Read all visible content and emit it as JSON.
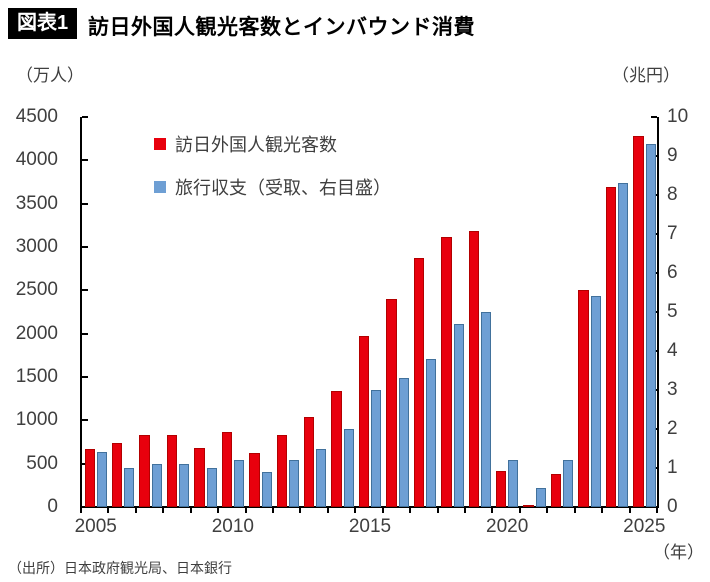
{
  "header": {
    "fig_label": "図表1",
    "title": "訪日外国人観光客数とインバウンド消費"
  },
  "axes": {
    "left_unit": "（万人）",
    "right_unit": "（兆円）",
    "x_unit": "（年）",
    "left_ticks": [
      "0",
      "500",
      "1000",
      "1500",
      "2000",
      "2500",
      "3000",
      "3500",
      "4000",
      "4500"
    ],
    "right_ticks": [
      "0",
      "1",
      "2",
      "3",
      "4",
      "5",
      "6",
      "7",
      "8",
      "9",
      "10"
    ],
    "x_tick_labels": [
      "2005",
      "2010",
      "2015",
      "2020",
      "2025"
    ]
  },
  "legend": [
    {
      "label": "訪日外国人観光客数",
      "color": "#e8000d"
    },
    {
      "label": "旅行収支（受取、右目盛）",
      "color": "#6e9fd4"
    }
  ],
  "source": "（出所）日本政府観光局、日本銀行",
  "colors": {
    "bar_red_fill": "#e8000d",
    "bar_red_border": "#b30000",
    "bar_blue_fill": "#6e9fd4",
    "bar_blue_border": "#41719c",
    "axis": "#000000",
    "text": "#3f3f3f"
  },
  "chart_data": {
    "type": "bar",
    "title": "訪日外国人観光客数とインバウンド消費",
    "categories": [
      2005,
      2006,
      2007,
      2008,
      2009,
      2010,
      2011,
      2012,
      2013,
      2014,
      2015,
      2016,
      2017,
      2018,
      2019,
      2020,
      2021,
      2022,
      2023,
      2024,
      2025
    ],
    "series": [
      {
        "name": "訪日外国人観光客数",
        "axis": "left",
        "unit": "万人",
        "color": "#e8000d",
        "values": [
          673,
          733,
          835,
          835,
          679,
          861,
          622,
          836,
          1036,
          1341,
          1974,
          2404,
          2869,
          3119,
          3188,
          412,
          25,
          383,
          2507,
          3687,
          4280
        ]
      },
      {
        "name": "旅行収支（受取、右目盛）",
        "axis": "right",
        "unit": "兆円",
        "color": "#6e9fd4",
        "values": [
          1.4,
          1.0,
          1.1,
          1.1,
          1.0,
          1.2,
          0.9,
          1.2,
          1.5,
          2.0,
          3.0,
          3.3,
          3.8,
          4.7,
          5.0,
          1.2,
          0.5,
          1.2,
          5.4,
          8.3,
          9.3
        ]
      }
    ],
    "left_axis": {
      "label": "（万人）",
      "range": [
        0,
        4500
      ],
      "tick_step": 500
    },
    "right_axis": {
      "label": "（兆円）",
      "range": [
        0,
        10
      ],
      "tick_step": 1
    },
    "x_label": "（年）",
    "grid": false,
    "legend_position": "top-left-inside"
  }
}
